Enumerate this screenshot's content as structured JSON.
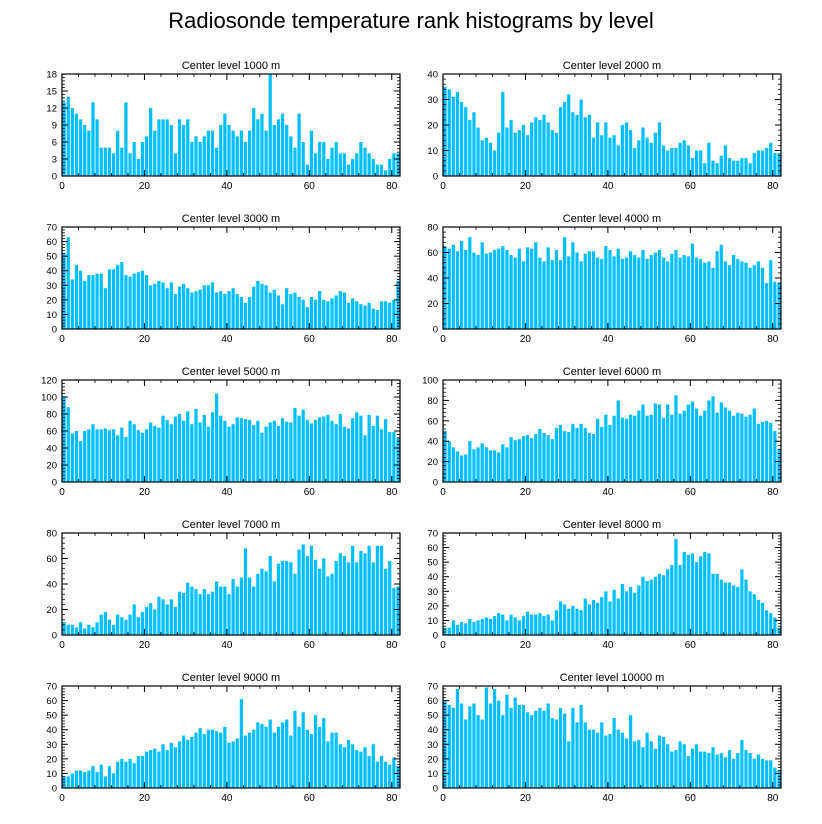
{
  "figure_title": "Radiosonde temperature rank histograms by level",
  "bar_color": "#00bfff",
  "chart_data": [
    {
      "type": "bar",
      "title": "Center level 1000 m",
      "xlabel": "",
      "ylabel": "",
      "xlim": [
        0,
        82
      ],
      "ylim": [
        0,
        18
      ],
      "xticks": [
        0,
        20,
        40,
        60,
        80
      ],
      "yticks": [
        0,
        3,
        6,
        9,
        12,
        15,
        18
      ],
      "values": [
        13,
        14,
        12,
        11,
        10,
        9,
        8,
        13,
        10,
        5,
        5,
        5,
        4,
        8,
        5,
        13,
        4,
        6,
        3,
        6,
        7,
        12,
        8,
        10,
        10,
        10,
        9,
        4,
        10,
        9,
        10,
        6,
        7,
        6,
        7,
        8,
        8,
        5,
        9,
        11,
        9,
        8,
        7,
        8,
        6,
        8,
        12,
        10,
        11,
        8,
        18,
        9,
        10,
        11,
        9,
        7,
        5,
        11,
        6,
        2,
        8,
        4,
        6,
        6,
        3,
        5,
        6,
        4,
        4,
        2,
        3,
        4,
        6,
        5,
        4,
        3,
        2,
        2,
        1,
        3,
        4,
        4
      ]
    },
    {
      "type": "bar",
      "title": "Center level 2000 m",
      "xlabel": "",
      "ylabel": "",
      "xlim": [
        0,
        82
      ],
      "ylim": [
        0,
        40
      ],
      "xticks": [
        0,
        20,
        40,
        60,
        80
      ],
      "yticks": [
        0,
        10,
        20,
        30,
        40
      ],
      "values": [
        35,
        34,
        31,
        33,
        29,
        27,
        22,
        25,
        19,
        14,
        15,
        13,
        10,
        17,
        33,
        19,
        22,
        17,
        18,
        20,
        16,
        21,
        23,
        22,
        24,
        21,
        18,
        17,
        27,
        29,
        32,
        25,
        24,
        30,
        23,
        24,
        15,
        21,
        16,
        21,
        15,
        16,
        12,
        20,
        21,
        18,
        11,
        14,
        19,
        15,
        13,
        17,
        21,
        12,
        10,
        11,
        11,
        13,
        14,
        12,
        7,
        10,
        10,
        5,
        13,
        6,
        5,
        8,
        12,
        7,
        6,
        6,
        7,
        7,
        5,
        9,
        10,
        10,
        11,
        13,
        9,
        9
      ]
    },
    {
      "type": "bar",
      "title": "Center level 3000 m",
      "xlabel": "",
      "ylabel": "",
      "xlim": [
        0,
        82
      ],
      "ylim": [
        0,
        70
      ],
      "xticks": [
        0,
        20,
        40,
        60,
        80
      ],
      "yticks": [
        0,
        10,
        20,
        30,
        40,
        50,
        60,
        70
      ],
      "values": [
        52,
        63,
        34,
        44,
        40,
        33,
        37,
        37,
        38,
        38,
        28,
        41,
        41,
        44,
        46,
        37,
        36,
        38,
        39,
        40,
        37,
        30,
        31,
        33,
        32,
        28,
        32,
        24,
        29,
        31,
        28,
        25,
        26,
        27,
        30,
        30,
        32,
        25,
        26,
        24,
        26,
        28,
        24,
        22,
        18,
        22,
        29,
        33,
        31,
        30,
        25,
        27,
        23,
        17,
        28,
        24,
        25,
        22,
        20,
        15,
        22,
        20,
        26,
        20,
        19,
        21,
        23,
        26,
        25,
        18,
        21,
        19,
        17,
        16,
        18,
        14,
        13,
        19,
        19,
        18,
        20,
        33
      ]
    },
    {
      "type": "bar",
      "title": "Center level 4000 m",
      "xlabel": "",
      "ylabel": "",
      "xlim": [
        0,
        82
      ],
      "ylim": [
        0,
        80
      ],
      "xticks": [
        0,
        20,
        40,
        60,
        80
      ],
      "yticks": [
        0,
        20,
        40,
        60,
        80
      ],
      "values": [
        65,
        63,
        66,
        61,
        69,
        62,
        72,
        60,
        58,
        68,
        59,
        60,
        62,
        63,
        65,
        62,
        58,
        56,
        63,
        53,
        64,
        63,
        68,
        56,
        53,
        64,
        54,
        62,
        54,
        72,
        57,
        68,
        60,
        53,
        59,
        61,
        61,
        56,
        55,
        65,
        62,
        57,
        63,
        55,
        56,
        61,
        58,
        56,
        62,
        55,
        58,
        60,
        62,
        56,
        53,
        59,
        62,
        56,
        58,
        57,
        67,
        56,
        55,
        52,
        53,
        48,
        61,
        66,
        53,
        50,
        58,
        55,
        53,
        52,
        48,
        50,
        53,
        48,
        36,
        54,
        37,
        36
      ]
    },
    {
      "type": "bar",
      "title": "Center level 5000 m",
      "xlabel": "",
      "ylabel": "",
      "xlim": [
        0,
        82
      ],
      "ylim": [
        0,
        120
      ],
      "xticks": [
        0,
        20,
        40,
        60,
        80
      ],
      "yticks": [
        0,
        20,
        40,
        60,
        80,
        100,
        120
      ],
      "values": [
        100,
        88,
        57,
        60,
        48,
        60,
        62,
        68,
        62,
        62,
        63,
        61,
        62,
        55,
        64,
        53,
        72,
        68,
        61,
        58,
        62,
        70,
        66,
        64,
        78,
        73,
        68,
        77,
        80,
        72,
        83,
        68,
        86,
        70,
        79,
        65,
        82,
        104,
        78,
        72,
        65,
        68,
        76,
        75,
        74,
        73,
        67,
        72,
        58,
        65,
        70,
        72,
        66,
        75,
        71,
        70,
        87,
        78,
        85,
        73,
        69,
        73,
        76,
        77,
        79,
        72,
        68,
        80,
        65,
        63,
        75,
        82,
        78,
        55,
        79,
        66,
        78,
        62,
        74,
        59,
        59,
        52
      ]
    },
    {
      "type": "bar",
      "title": "Center level 6000 m",
      "xlabel": "",
      "ylabel": "",
      "xlim": [
        0,
        82
      ],
      "ylim": [
        0,
        100
      ],
      "xticks": [
        0,
        20,
        40,
        60,
        80
      ],
      "yticks": [
        0,
        20,
        40,
        60,
        80,
        100
      ],
      "values": [
        50,
        40,
        34,
        30,
        26,
        27,
        40,
        32,
        34,
        38,
        34,
        31,
        31,
        29,
        37,
        34,
        44,
        41,
        42,
        45,
        46,
        43,
        47,
        52,
        48,
        46,
        42,
        53,
        56,
        50,
        49,
        57,
        53,
        57,
        53,
        48,
        47,
        62,
        54,
        66,
        56,
        65,
        80,
        63,
        62,
        66,
        65,
        70,
        76,
        65,
        66,
        77,
        76,
        63,
        76,
        66,
        85,
        67,
        70,
        76,
        79,
        72,
        65,
        70,
        80,
        84,
        68,
        78,
        73,
        70,
        65,
        68,
        67,
        64,
        66,
        72,
        57,
        59,
        60,
        58,
        50,
        32
      ]
    },
    {
      "type": "bar",
      "title": "Center level 7000 m",
      "xlabel": "",
      "ylabel": "",
      "xlim": [
        0,
        82
      ],
      "ylim": [
        0,
        80
      ],
      "xticks": [
        0,
        20,
        40,
        60,
        80
      ],
      "yticks": [
        0,
        20,
        40,
        60,
        80
      ],
      "values": [
        10,
        8,
        8,
        6,
        10,
        5,
        8,
        6,
        10,
        16,
        18,
        12,
        8,
        16,
        14,
        12,
        16,
        24,
        14,
        18,
        22,
        25,
        20,
        30,
        28,
        24,
        28,
        22,
        34,
        33,
        41,
        38,
        36,
        32,
        36,
        32,
        34,
        42,
        38,
        38,
        32,
        44,
        38,
        45,
        68,
        45,
        38,
        48,
        52,
        50,
        62,
        42,
        56,
        58,
        58,
        57,
        48,
        67,
        71,
        62,
        70,
        59,
        52,
        60,
        46,
        48,
        58,
        64,
        62,
        57,
        70,
        57,
        66,
        64,
        70,
        57,
        70,
        70,
        52,
        58,
        37,
        38
      ]
    },
    {
      "type": "bar",
      "title": "Center level 8000 m",
      "xlabel": "",
      "ylabel": "",
      "xlim": [
        0,
        82
      ],
      "ylim": [
        0,
        70
      ],
      "xticks": [
        0,
        20,
        40,
        60,
        80
      ],
      "yticks": [
        0,
        10,
        20,
        30,
        40,
        50,
        60,
        70
      ],
      "values": [
        5,
        5,
        10,
        7,
        9,
        8,
        11,
        9,
        10,
        11,
        12,
        11,
        13,
        15,
        14,
        10,
        14,
        12,
        10,
        13,
        16,
        14,
        14,
        15,
        13,
        14,
        10,
        17,
        23,
        21,
        18,
        20,
        18,
        17,
        25,
        21,
        24,
        22,
        26,
        30,
        23,
        31,
        25,
        35,
        30,
        33,
        29,
        34,
        40,
        37,
        38,
        40,
        42,
        41,
        45,
        48,
        66,
        48,
        57,
        55,
        56,
        50,
        54,
        57,
        56,
        42,
        42,
        38,
        36,
        36,
        34,
        33,
        45,
        38,
        30,
        28,
        24,
        22,
        17,
        15,
        12,
        5
      ]
    },
    {
      "type": "bar",
      "title": "Center level 9000 m",
      "xlabel": "",
      "ylabel": "",
      "xlim": [
        0,
        82
      ],
      "ylim": [
        0,
        70
      ],
      "xticks": [
        0,
        20,
        40,
        60,
        80
      ],
      "yticks": [
        0,
        10,
        20,
        30,
        40,
        50,
        60,
        70
      ],
      "values": [
        8,
        8,
        10,
        12,
        12,
        11,
        12,
        15,
        11,
        16,
        8,
        15,
        10,
        18,
        20,
        18,
        20,
        17,
        22,
        22,
        25,
        26,
        27,
        25,
        30,
        26,
        31,
        28,
        32,
        36,
        33,
        35,
        38,
        41,
        37,
        40,
        40,
        39,
        38,
        42,
        31,
        32,
        34,
        61,
        36,
        38,
        40,
        45,
        44,
        42,
        47,
        38,
        42,
        45,
        47,
        36,
        53,
        42,
        52,
        40,
        37,
        50,
        42,
        48,
        32,
        38,
        38,
        30,
        28,
        33,
        30,
        26,
        25,
        28,
        22,
        30,
        18,
        22,
        18,
        16,
        21,
        15
      ]
    },
    {
      "type": "bar",
      "title": "Center level 10000 m",
      "xlabel": "",
      "ylabel": "",
      "xlim": [
        0,
        82
      ],
      "ylim": [
        0,
        70
      ],
      "xticks": [
        0,
        20,
        40,
        60,
        80
      ],
      "yticks": [
        0,
        10,
        20,
        30,
        40,
        50,
        60,
        70
      ],
      "values": [
        60,
        57,
        55,
        68,
        58,
        47,
        56,
        58,
        50,
        47,
        69,
        58,
        68,
        60,
        50,
        64,
        55,
        62,
        57,
        57,
        52,
        50,
        53,
        55,
        53,
        58,
        48,
        47,
        55,
        51,
        32,
        55,
        45,
        57,
        45,
        40,
        40,
        38,
        45,
        36,
        37,
        48,
        40,
        38,
        34,
        50,
        32,
        33,
        28,
        38,
        32,
        27,
        36,
        35,
        30,
        25,
        26,
        32,
        30,
        22,
        27,
        30,
        25,
        25,
        24,
        28,
        23,
        24,
        21,
        26,
        20,
        24,
        33,
        26,
        24,
        20,
        23,
        20,
        19,
        19,
        14,
        12
      ]
    }
  ]
}
